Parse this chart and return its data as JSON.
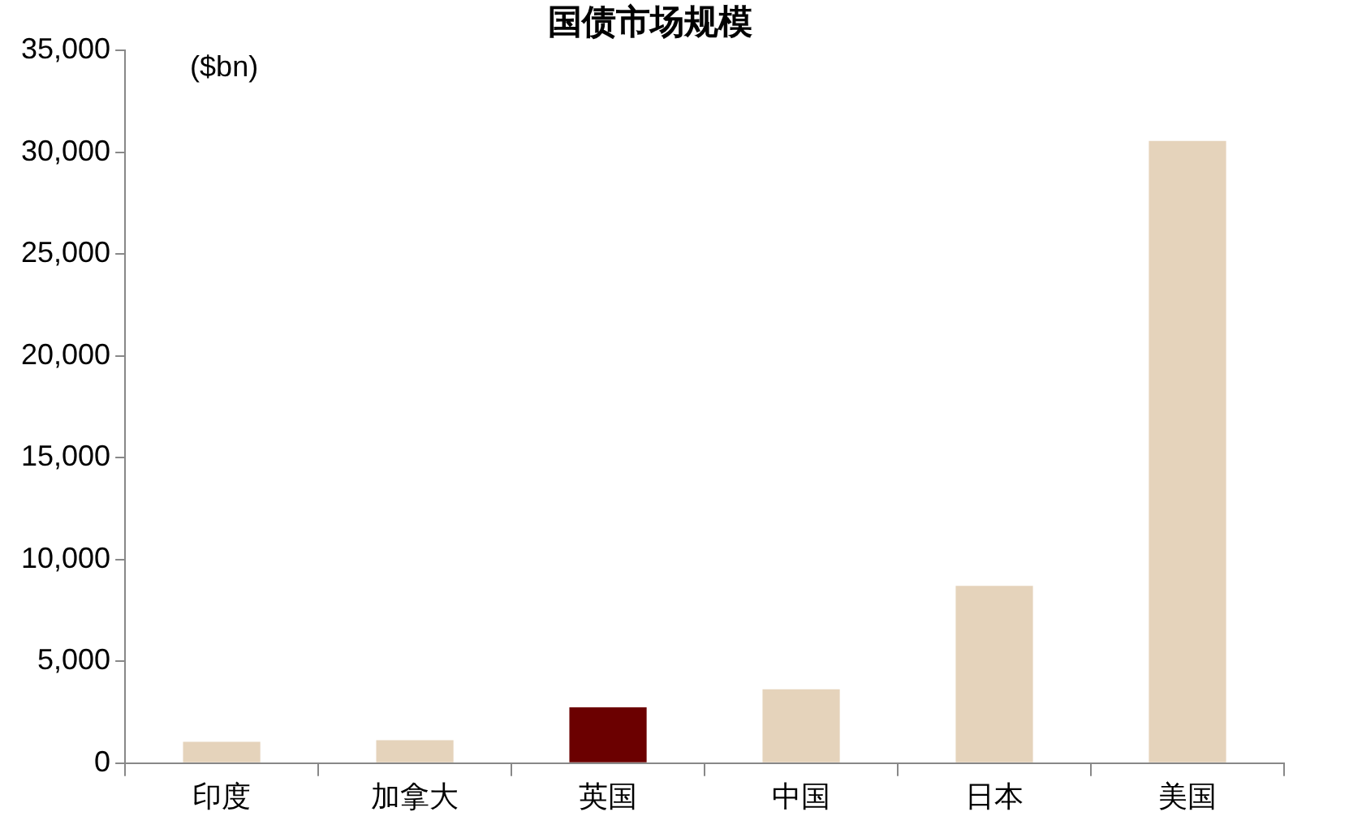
{
  "chart_data": {
    "type": "bar",
    "title": "国债市场规模",
    "annotations": [
      "($bn)"
    ],
    "categories": [
      "印度",
      "加拿大",
      "英国",
      "中国",
      "日本",
      "美国"
    ],
    "values": [
      1050,
      1130,
      2740,
      3630,
      8710,
      30560
    ],
    "colors": [
      "#e5d3bb",
      "#e5d3bb",
      "#6b0000",
      "#e5d3bb",
      "#e5d3bb",
      "#e5d3bb"
    ],
    "ylim": [
      0,
      35000
    ],
    "yticks": [
      0,
      {
        "value": 5000,
        "label": "5,000"
      },
      {
        "value": 10000,
        "label": "10,000"
      },
      {
        "value": 15000,
        "label": "15,000"
      },
      {
        "value": 20000,
        "label": "20,000"
      },
      {
        "value": 25000,
        "label": "25,000"
      },
      {
        "value": 30000,
        "label": "30,000"
      },
      {
        "value": 35000,
        "label": "35,000"
      }
    ],
    "grid": false,
    "legend": false
  }
}
